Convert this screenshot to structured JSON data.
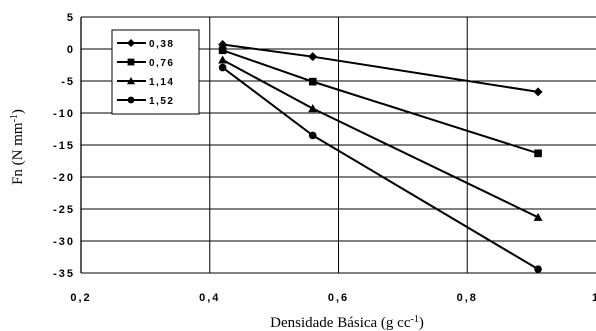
{
  "chart_data": {
    "type": "line",
    "xlabel_main": "Densidade Básica (g cc",
    "xlabel_sup": "-1",
    "xlabel_end": ")",
    "ylabel_main": "Fn (N mm",
    "ylabel_sup": "-1",
    "ylabel_end": ")",
    "xlim": [
      0.2,
      1.0
    ],
    "ylim": [
      -35,
      5
    ],
    "x_ticks": [
      {
        "value": 0.2,
        "label": "0,2"
      },
      {
        "value": 0.4,
        "label": "0,4"
      },
      {
        "value": 0.6,
        "label": "0,6"
      },
      {
        "value": 0.8,
        "label": "0,8"
      },
      {
        "value": 1.0,
        "label": "1"
      }
    ],
    "y_ticks": [
      {
        "value": 5,
        "label": "5"
      },
      {
        "value": 0,
        "label": "0"
      },
      {
        "value": -5,
        "label": "-5"
      },
      {
        "value": -10,
        "label": "-10"
      },
      {
        "value": -15,
        "label": "-15"
      },
      {
        "value": -20,
        "label": "-20"
      },
      {
        "value": -25,
        "label": "-25"
      },
      {
        "value": -30,
        "label": "-30"
      },
      {
        "value": -35,
        "label": "-35"
      }
    ],
    "grid": true,
    "legend_position": "top-left",
    "series": [
      {
        "name": "0,38",
        "marker": "diamond",
        "x": [
          0.42,
          0.56,
          0.91
        ],
        "y": [
          0.7,
          -1.2,
          -6.7
        ]
      },
      {
        "name": "0,76",
        "marker": "square",
        "x": [
          0.42,
          0.56,
          0.91
        ],
        "y": [
          -0.2,
          -5.1,
          -16.3
        ]
      },
      {
        "name": "1,14",
        "marker": "triangle",
        "x": [
          0.42,
          0.56,
          0.91
        ],
        "y": [
          -1.7,
          -9.3,
          -26.3
        ]
      },
      {
        "name": "1,52",
        "marker": "circle",
        "x": [
          0.42,
          0.56,
          0.91
        ],
        "y": [
          -2.9,
          -13.5,
          -34.4
        ]
      }
    ]
  }
}
